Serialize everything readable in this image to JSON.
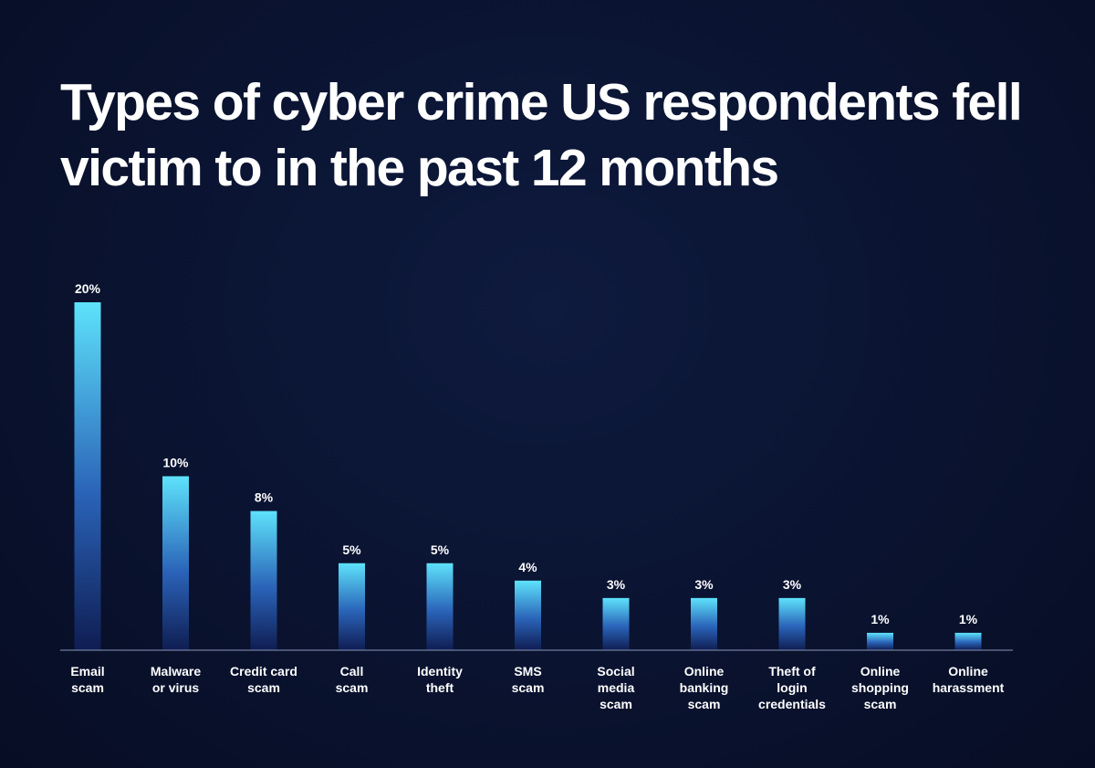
{
  "title": "Types of cyber crime US respondents fell victim to in the past 12 months",
  "colors": {
    "background": "#0a1330",
    "bar_top": "#5ee2fb",
    "bar_bottom": "#0f1d52",
    "axis": "#8a96b8",
    "text": "#ffffff"
  },
  "chart_data": {
    "type": "bar",
    "title": "Types of cyber crime US respondents fell victim to in the past 12 months",
    "xlabel": "",
    "ylabel": "",
    "ylim": [
      0,
      20
    ],
    "grid": false,
    "categories": [
      "Email scam",
      "Malware or virus",
      "Credit card scam",
      "Call scam",
      "Identity theft",
      "SMS scam",
      "Social media scam",
      "Online banking scam",
      "Theft of login credentials",
      "Online shopping scam",
      "Online harassment"
    ],
    "category_lines": [
      [
        "Email",
        "scam"
      ],
      [
        "Malware",
        "or virus"
      ],
      [
        "Credit card",
        "scam"
      ],
      [
        "Call",
        "scam"
      ],
      [
        "Identity",
        "theft"
      ],
      [
        "SMS",
        "scam"
      ],
      [
        "Social",
        "media",
        "scam"
      ],
      [
        "Online",
        "banking",
        "scam"
      ],
      [
        "Theft of",
        "login",
        "credentials"
      ],
      [
        "Online",
        "shopping",
        "scam"
      ],
      [
        "Online",
        "harassment"
      ]
    ],
    "values": [
      20,
      10,
      8,
      5,
      5,
      4,
      3,
      3,
      3,
      1,
      1
    ],
    "value_labels": [
      "20%",
      "10%",
      "8%",
      "5%",
      "5%",
      "4%",
      "3%",
      "3%",
      "3%",
      "1%",
      "1%"
    ]
  }
}
